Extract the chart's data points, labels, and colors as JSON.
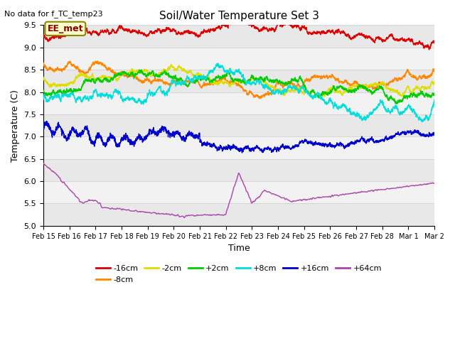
{
  "title": "Soil/Water Temperature Set 3",
  "xlabel": "Time",
  "ylabel": "Temperature (C)",
  "ylim": [
    5.0,
    9.5
  ],
  "note": "No data for f_TC_temp23",
  "annotation": "EE_met",
  "yticks": [
    5.0,
    5.5,
    6.0,
    6.5,
    7.0,
    7.5,
    8.0,
    8.5,
    9.0,
    9.5
  ],
  "xtick_labels": [
    "Feb 15",
    "Feb 16",
    "Feb 17",
    "Feb 18",
    "Feb 19",
    "Feb 20",
    "Feb 21",
    "Feb 22",
    "Feb 23",
    "Feb 24",
    "Feb 25",
    "Feb 26",
    "Feb 27",
    "Feb 28",
    "Mar 1",
    "Mar 2"
  ],
  "legend_colors": {
    "-16cm": "#dd0000",
    "-8cm": "#ff8800",
    "-2cm": "#dddd00",
    "+2cm": "#00cc00",
    "+8cm": "#00dddd",
    "+16cm": "#0000cc",
    "+64cm": "#aa44aa"
  },
  "bg_color": "#ffffff"
}
